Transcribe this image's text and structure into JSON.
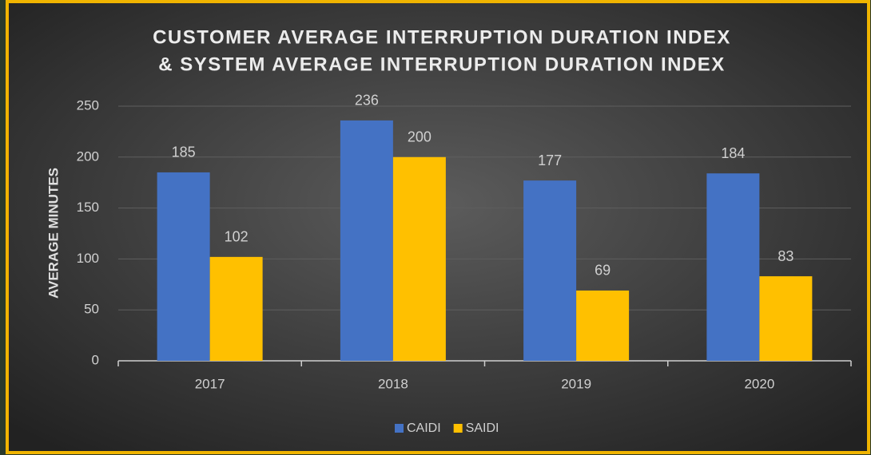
{
  "chart_data": {
    "type": "bar",
    "title": [
      "CUSTOMER AVERAGE INTERRUPTION DURATION INDEX",
      "& SYSTEM AVERAGE INTERRUPTION DURATION INDEX"
    ],
    "y_label": "AVERAGE MINUTES",
    "categories": [
      "2017",
      "2018",
      "2019",
      "2020"
    ],
    "series": [
      {
        "name": "CAIDI",
        "color": "#4472c4",
        "values": [
          185,
          236,
          177,
          184
        ]
      },
      {
        "name": "SAIDI",
        "color": "#ffc000",
        "values": [
          102,
          200,
          69,
          83
        ]
      }
    ],
    "ylim": [
      0,
      250
    ],
    "yticks": [
      0,
      50,
      100,
      150,
      200,
      250
    ],
    "grid": true,
    "legend": "bottom"
  }
}
